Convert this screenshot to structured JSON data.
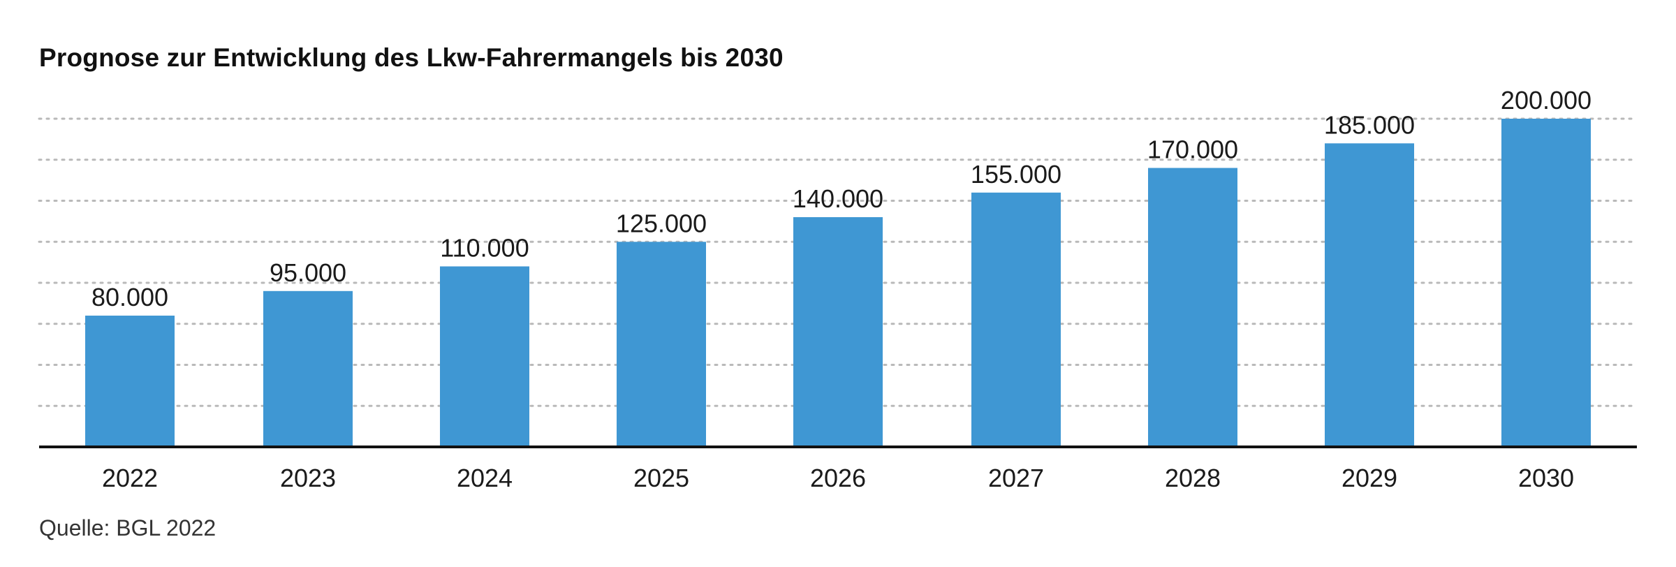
{
  "chart_data": {
    "type": "bar",
    "title": "Prognose zur Entwicklung des Lkw-Fahrermangels bis 2030",
    "source": "Quelle: BGL 2022",
    "xlabel": "",
    "ylabel": "",
    "categories": [
      "2022",
      "2023",
      "2024",
      "2025",
      "2026",
      "2027",
      "2028",
      "2029",
      "2030"
    ],
    "values": [
      80000,
      95000,
      110000,
      125000,
      140000,
      155000,
      170000,
      185000,
      200000
    ],
    "value_labels": [
      "80.000",
      "95.000",
      "110.000",
      "125.000",
      "140.000",
      "155.000",
      "170.000",
      "185.000",
      "200.000"
    ],
    "ylim": [
      0,
      200000
    ],
    "grid": true,
    "grid_style": "dotted",
    "y_axis_visible": false,
    "legend": "none",
    "bar_color": "#3f97d3"
  }
}
